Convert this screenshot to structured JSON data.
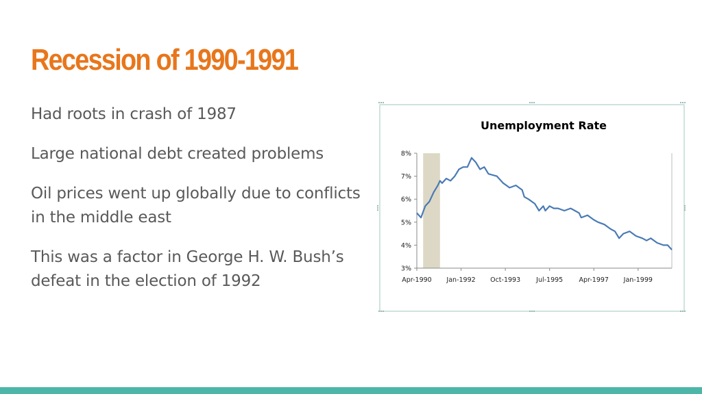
{
  "slide": {
    "title": "Recession of 1990-1991",
    "bullets": [
      "Had roots in crash of 1987",
      "Large national debt created problems",
      "Oil prices went up globally due to conflicts in the middle east",
      "This was a factor in George H. W. Bush’s defeat in the election of 1992"
    ]
  },
  "colors": {
    "title": "#e8761b",
    "text": "#595959",
    "accent_bar": "#4db6a8",
    "line": "#4a7ab5",
    "recession_shade": "#ddd8c5"
  },
  "chart_data": {
    "type": "line",
    "title": "Unemployment Rate",
    "xlabel": "",
    "ylabel": "",
    "x_tick_labels": [
      "Apr-1990",
      "Jan-1992",
      "Oct-1993",
      "Jul-1995",
      "Apr-1997",
      "Jan-1999"
    ],
    "y_tick_labels": [
      "3%",
      "4%",
      "5%",
      "6%",
      "7%",
      "8%"
    ],
    "ylim": [
      3,
      8
    ],
    "x_range_months": [
      "1990-04",
      "2000-05"
    ],
    "shaded_region": {
      "start": "1990-07",
      "end": "1991-03",
      "label": ""
    },
    "grid": false,
    "legend": "none",
    "series": [
      {
        "values": [
          {
            "x": "1990-04",
            "y": 5.4
          },
          {
            "x": "1990-06",
            "y": 5.2
          },
          {
            "x": "1990-08",
            "y": 5.7
          },
          {
            "x": "1990-10",
            "y": 5.9
          },
          {
            "x": "1990-12",
            "y": 6.3
          },
          {
            "x": "1991-02",
            "y": 6.6
          },
          {
            "x": "1991-03",
            "y": 6.8
          },
          {
            "x": "1991-04",
            "y": 6.7
          },
          {
            "x": "1991-06",
            "y": 6.9
          },
          {
            "x": "1991-08",
            "y": 6.8
          },
          {
            "x": "1991-10",
            "y": 7.0
          },
          {
            "x": "1991-12",
            "y": 7.3
          },
          {
            "x": "1992-02",
            "y": 7.4
          },
          {
            "x": "1992-04",
            "y": 7.4
          },
          {
            "x": "1992-06",
            "y": 7.8
          },
          {
            "x": "1992-08",
            "y": 7.6
          },
          {
            "x": "1992-10",
            "y": 7.3
          },
          {
            "x": "1992-12",
            "y": 7.4
          },
          {
            "x": "1993-02",
            "y": 7.1
          },
          {
            "x": "1993-06",
            "y": 7.0
          },
          {
            "x": "1993-09",
            "y": 6.7
          },
          {
            "x": "1993-12",
            "y": 6.5
          },
          {
            "x": "1994-03",
            "y": 6.6
          },
          {
            "x": "1994-06",
            "y": 6.4
          },
          {
            "x": "1994-07",
            "y": 6.1
          },
          {
            "x": "1994-09",
            "y": 6.0
          },
          {
            "x": "1994-12",
            "y": 5.8
          },
          {
            "x": "1995-02",
            "y": 5.5
          },
          {
            "x": "1995-04",
            "y": 5.7
          },
          {
            "x": "1995-05",
            "y": 5.5
          },
          {
            "x": "1995-07",
            "y": 5.7
          },
          {
            "x": "1995-09",
            "y": 5.6
          },
          {
            "x": "1995-11",
            "y": 5.6
          },
          {
            "x": "1996-02",
            "y": 5.5
          },
          {
            "x": "1996-05",
            "y": 5.6
          },
          {
            "x": "1996-07",
            "y": 5.5
          },
          {
            "x": "1996-09",
            "y": 5.4
          },
          {
            "x": "1996-10",
            "y": 5.2
          },
          {
            "x": "1997-01",
            "y": 5.3
          },
          {
            "x": "1997-04",
            "y": 5.1
          },
          {
            "x": "1997-06",
            "y": 5.0
          },
          {
            "x": "1997-09",
            "y": 4.9
          },
          {
            "x": "1997-12",
            "y": 4.7
          },
          {
            "x": "1998-02",
            "y": 4.6
          },
          {
            "x": "1998-04",
            "y": 4.3
          },
          {
            "x": "1998-06",
            "y": 4.5
          },
          {
            "x": "1998-09",
            "y": 4.6
          },
          {
            "x": "1998-12",
            "y": 4.4
          },
          {
            "x": "1999-03",
            "y": 4.3
          },
          {
            "x": "1999-05",
            "y": 4.2
          },
          {
            "x": "1999-07",
            "y": 4.3
          },
          {
            "x": "1999-10",
            "y": 4.1
          },
          {
            "x": "2000-01",
            "y": 4.0
          },
          {
            "x": "2000-03",
            "y": 4.0
          },
          {
            "x": "2000-05",
            "y": 3.8
          }
        ]
      }
    ]
  }
}
